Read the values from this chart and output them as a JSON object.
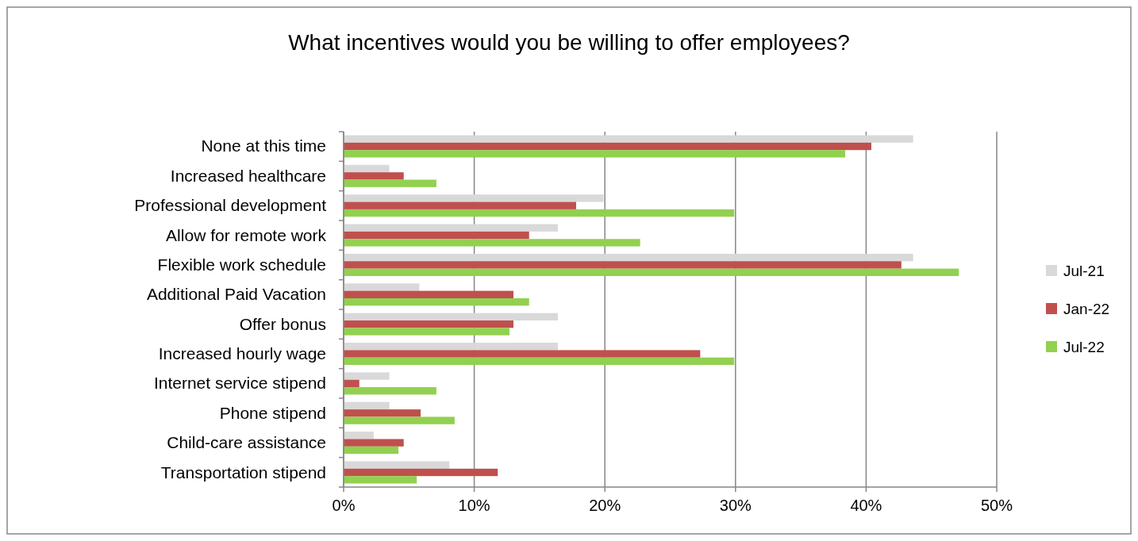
{
  "chart_data": {
    "type": "bar",
    "orientation": "horizontal",
    "title": "What incentives would you be willing to offer employees?",
    "categories": [
      "None at this time",
      "Increased healthcare",
      "Professional development",
      "Allow for remote work",
      "Flexible work schedule",
      "Additional Paid Vacation",
      "Offer bonus",
      "Increased hourly wage",
      "Internet service stipend",
      "Phone stipend",
      "Child-care assistance",
      "Transportation stipend"
    ],
    "series": [
      {
        "name": "Jul-21",
        "color": "#d9d9d9",
        "values": [
          43.6,
          3.5,
          19.9,
          16.4,
          43.6,
          5.8,
          16.4,
          16.4,
          3.5,
          3.5,
          2.3,
          8.1
        ]
      },
      {
        "name": "Jan-22",
        "color": "#c0504d",
        "values": [
          40.4,
          4.6,
          17.8,
          14.2,
          42.7,
          13.0,
          13.0,
          27.3,
          1.2,
          5.9,
          4.6,
          11.8
        ]
      },
      {
        "name": "Jul-22",
        "color": "#92d050",
        "values": [
          38.4,
          7.1,
          29.9,
          22.7,
          47.1,
          14.2,
          12.7,
          29.9,
          7.1,
          8.5,
          4.2,
          5.6
        ]
      }
    ],
    "xlim": [
      0,
      50
    ],
    "xticks": [
      {
        "value": 0,
        "label": "0%"
      },
      {
        "value": 10,
        "label": "10%"
      },
      {
        "value": 20,
        "label": "20%"
      },
      {
        "value": 30,
        "label": "30%"
      },
      {
        "value": 40,
        "label": "40%"
      },
      {
        "value": 50,
        "label": "50%"
      }
    ],
    "grid": "x",
    "legend": "right"
  }
}
